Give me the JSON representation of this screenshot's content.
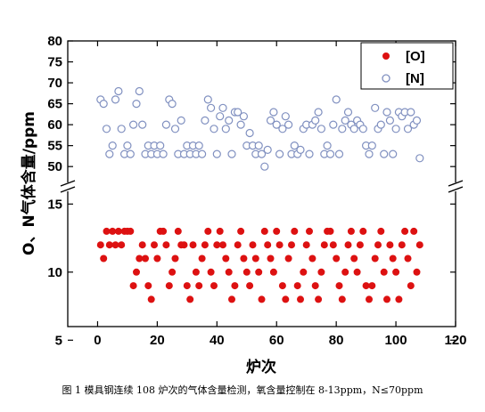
{
  "caption": "图 1 模具钢连续 108 炉次的气体含量检测，氧含量控制在 8-13ppm，N≤70ppm",
  "chart_data": {
    "type": "scatter",
    "xlabel": "炉次",
    "ylabel": "O、N气体含量/ppm",
    "xlim": [
      -10,
      120
    ],
    "x_ticks": [
      0,
      20,
      40,
      60,
      80,
      100,
      120
    ],
    "axis_break": true,
    "upper_panel": {
      "ylim": [
        46,
        80
      ],
      "y_ticks": [
        50,
        55,
        60,
        65,
        70,
        75,
        80
      ]
    },
    "lower_panel": {
      "ylim": [
        6,
        16
      ],
      "y_ticks": [
        5,
        10,
        15
      ]
    },
    "legend": {
      "placement": "top-right",
      "entries": [
        "[O]",
        "[N]"
      ]
    },
    "series": [
      {
        "name": "[N]",
        "color": "#8090c0",
        "marker": "open-circle",
        "panel": "upper",
        "x": [
          1,
          2,
          3,
          4,
          5,
          6,
          7,
          8,
          9,
          10,
          11,
          12,
          13,
          14,
          15,
          16,
          17,
          18,
          19,
          20,
          21,
          22,
          23,
          24,
          25,
          26,
          27,
          28,
          29,
          30,
          31,
          32,
          33,
          34,
          35,
          36,
          37,
          38,
          39,
          40,
          41,
          42,
          43,
          44,
          45,
          46,
          47,
          48,
          49,
          50,
          51,
          52,
          53,
          54,
          55,
          56,
          57,
          58,
          59,
          60,
          61,
          62,
          63,
          64,
          65,
          66,
          67,
          68,
          69,
          70,
          71,
          72,
          73,
          74,
          75,
          76,
          77,
          78,
          79,
          80,
          81,
          82,
          83,
          84,
          85,
          86,
          87,
          88,
          89,
          90,
          91,
          92,
          93,
          94,
          95,
          96,
          97,
          98,
          99,
          100,
          101,
          102,
          103,
          104,
          105,
          106,
          107,
          108
        ],
        "y": [
          66,
          65,
          59,
          53,
          55,
          66,
          68,
          59,
          53,
          55,
          53,
          60,
          65,
          68,
          60,
          53,
          55,
          53,
          55,
          53,
          55,
          53,
          60,
          66,
          65,
          59,
          53,
          61,
          53,
          55,
          53,
          55,
          53,
          55,
          53,
          61,
          66,
          64,
          59,
          53,
          62,
          64,
          59,
          61,
          53,
          63,
          63,
          60,
          62,
          55,
          58,
          55,
          53,
          55,
          53,
          50,
          54,
          61,
          63,
          60,
          53,
          59,
          62,
          60,
          53,
          55,
          53,
          54,
          59,
          60,
          53,
          60,
          61,
          63,
          59,
          53,
          55,
          53,
          60,
          66,
          53,
          59,
          61,
          63,
          60,
          59,
          61,
          60,
          59,
          55,
          53,
          55,
          64,
          59,
          60,
          53,
          63,
          61,
          53,
          59,
          63,
          62,
          63,
          59,
          63,
          60,
          61,
          52
        ]
      },
      {
        "name": "[O]",
        "color": "#dd1111",
        "marker": "filled-circle",
        "panel": "lower",
        "x": [
          1,
          2,
          3,
          4,
          5,
          6,
          7,
          8,
          9,
          10,
          11,
          12,
          13,
          14,
          15,
          16,
          17,
          18,
          19,
          20,
          21,
          22,
          23,
          24,
          25,
          26,
          27,
          28,
          29,
          30,
          31,
          32,
          33,
          34,
          35,
          36,
          37,
          38,
          39,
          40,
          41,
          42,
          43,
          44,
          45,
          46,
          47,
          48,
          49,
          50,
          51,
          52,
          53,
          54,
          55,
          56,
          57,
          58,
          59,
          60,
          61,
          62,
          63,
          64,
          65,
          66,
          67,
          68,
          69,
          70,
          71,
          72,
          73,
          74,
          75,
          76,
          77,
          78,
          79,
          80,
          81,
          82,
          83,
          84,
          85,
          86,
          87,
          88,
          89,
          90,
          91,
          92,
          93,
          94,
          95,
          96,
          97,
          98,
          99,
          100,
          101,
          102,
          103,
          104,
          105,
          106,
          107,
          108
        ],
        "y": [
          12,
          11,
          13,
          12,
          13,
          12,
          13,
          12,
          13,
          13,
          13,
          9,
          10,
          11,
          12,
          11,
          9,
          8,
          12,
          11,
          13,
          13,
          12,
          9,
          10,
          11,
          13,
          12,
          12,
          9,
          8,
          12,
          10,
          9,
          11,
          12,
          13,
          10,
          9,
          12,
          13,
          12,
          11,
          10,
          8,
          9,
          12,
          13,
          11,
          10,
          9,
          12,
          11,
          10,
          8,
          13,
          12,
          11,
          10,
          13,
          12,
          9,
          8,
          11,
          12,
          13,
          9,
          8,
          10,
          12,
          13,
          11,
          9,
          8,
          10,
          12,
          13,
          13,
          12,
          11,
          9,
          8,
          10,
          12,
          13,
          11,
          10,
          12,
          13,
          9,
          8,
          9,
          11,
          12,
          13,
          10,
          8,
          12,
          11,
          10,
          8,
          12,
          13,
          11,
          9,
          13,
          10,
          12
        ]
      }
    ]
  }
}
